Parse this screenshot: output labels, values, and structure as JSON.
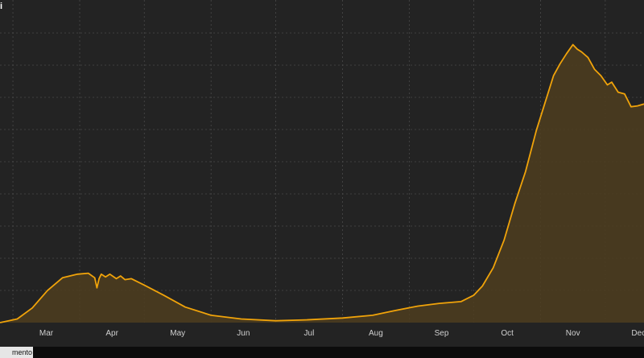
{
  "corner_text": "i",
  "bottom_tab_label": "mento",
  "colors": {
    "background": "#232323",
    "line": "#f0a30a",
    "area": "#4d3d1f",
    "grid": "#4a4a4a",
    "tick_text": "#d0d0d0"
  },
  "chart_data": {
    "type": "area",
    "title": "",
    "xlabel": "",
    "ylabel": "",
    "grid": true,
    "x_ticks": [
      "Mar",
      "Apr",
      "May",
      "Jun",
      "Jul",
      "Aug",
      "Sep",
      "Oct",
      "Nov",
      "Dec"
    ],
    "x_domain": [
      "2020-02-24",
      "2020-12-19"
    ],
    "ylim": [
      0,
      30
    ],
    "series": [
      {
        "values": [
          [
            "2020-02-24",
            0.0
          ],
          [
            "2020-03-03",
            0.4
          ],
          [
            "2020-03-10",
            1.6
          ],
          [
            "2020-03-17",
            3.5
          ],
          [
            "2020-03-24",
            4.9
          ],
          [
            "2020-03-31",
            5.3
          ],
          [
            "2020-04-05",
            5.4
          ],
          [
            "2020-04-08",
            4.9
          ],
          [
            "2020-04-09",
            3.8
          ],
          [
            "2020-04-10",
            4.8
          ],
          [
            "2020-04-11",
            5.3
          ],
          [
            "2020-04-13",
            5.0
          ],
          [
            "2020-04-15",
            5.3
          ],
          [
            "2020-04-18",
            4.8
          ],
          [
            "2020-04-20",
            5.1
          ],
          [
            "2020-04-22",
            4.7
          ],
          [
            "2020-04-25",
            4.8
          ],
          [
            "2020-05-01",
            4.1
          ],
          [
            "2020-05-10",
            3.0
          ],
          [
            "2020-05-20",
            1.7
          ],
          [
            "2020-06-01",
            0.8
          ],
          [
            "2020-06-15",
            0.4
          ],
          [
            "2020-07-01",
            0.2
          ],
          [
            "2020-07-15",
            0.3
          ],
          [
            "2020-08-01",
            0.5
          ],
          [
            "2020-08-15",
            0.8
          ],
          [
            "2020-08-25",
            1.3
          ],
          [
            "2020-09-05",
            1.8
          ],
          [
            "2020-09-15",
            2.1
          ],
          [
            "2020-09-25",
            2.3
          ],
          [
            "2020-10-01",
            3.0
          ],
          [
            "2020-10-05",
            4.0
          ],
          [
            "2020-10-10",
            6.0
          ],
          [
            "2020-10-15",
            9.0
          ],
          [
            "2020-10-20",
            13.0
          ],
          [
            "2020-10-25",
            16.5
          ],
          [
            "2020-10-30",
            21.0
          ],
          [
            "2020-11-03",
            24.0
          ],
          [
            "2020-11-07",
            27.0
          ],
          [
            "2020-11-10",
            28.3
          ],
          [
            "2020-11-13",
            29.4
          ],
          [
            "2020-11-16",
            30.4
          ],
          [
            "2020-11-18",
            29.9
          ],
          [
            "2020-11-20",
            29.6
          ],
          [
            "2020-11-23",
            29.0
          ],
          [
            "2020-11-26",
            27.7
          ],
          [
            "2020-11-29",
            27.0
          ],
          [
            "2020-12-02",
            26.0
          ],
          [
            "2020-12-04",
            26.3
          ],
          [
            "2020-12-07",
            25.2
          ],
          [
            "2020-12-10",
            25.0
          ],
          [
            "2020-12-13",
            23.6
          ],
          [
            "2020-12-16",
            23.7
          ],
          [
            "2020-12-19",
            23.9
          ]
        ]
      }
    ]
  }
}
